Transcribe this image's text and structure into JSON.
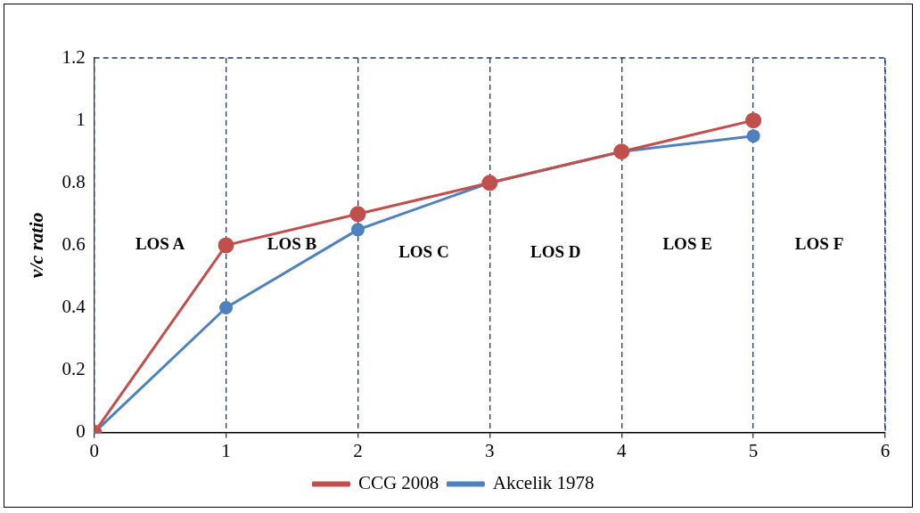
{
  "chart_data": {
    "type": "line",
    "ylabel": "v/c ratio",
    "x": [
      0,
      1,
      2,
      3,
      4,
      5
    ],
    "series": [
      {
        "name": "Akcelik 1978",
        "color": "#4f81bd",
        "values": [
          0,
          0.4,
          0.65,
          0.8,
          0.9,
          0.95
        ]
      },
      {
        "name": "CCG 2008",
        "color": "#c0504d",
        "values": [
          0,
          0.6,
          0.7,
          0.8,
          0.9,
          1.0
        ]
      }
    ],
    "xlim": [
      0,
      6
    ],
    "xticks": [
      0,
      1,
      2,
      3,
      4,
      5,
      6
    ],
    "ylim": [
      0,
      1.2
    ],
    "yticks": [
      0,
      0.2,
      0.4,
      0.6,
      0.8,
      1,
      1.2
    ],
    "grid": "x",
    "legend": "bottom",
    "marker": "circle",
    "line_style": "solid",
    "annotations": [
      "LOS A",
      "LOS B",
      "LOS C",
      "LOS D",
      "LOS E",
      "LOS F"
    ]
  }
}
